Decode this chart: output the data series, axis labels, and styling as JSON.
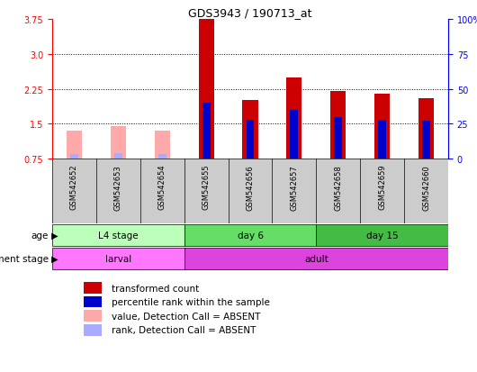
{
  "title": "GDS3943 / 190713_at",
  "samples": [
    "GSM542652",
    "GSM542653",
    "GSM542654",
    "GSM542655",
    "GSM542656",
    "GSM542657",
    "GSM542658",
    "GSM542659",
    "GSM542660"
  ],
  "transformed_count": [
    1.35,
    1.45,
    1.35,
    3.75,
    2.0,
    2.5,
    2.2,
    2.15,
    2.05
  ],
  "percentile_rank": [
    0.03,
    0.04,
    0.03,
    0.4,
    0.28,
    0.35,
    0.3,
    0.28,
    0.27
  ],
  "detection_absent": [
    true,
    true,
    true,
    false,
    false,
    false,
    false,
    false,
    false
  ],
  "ylim_left": [
    0.75,
    3.75
  ],
  "yticks_left": [
    0.75,
    1.5,
    2.25,
    3.0,
    3.75
  ],
  "yticks_right": [
    0,
    25,
    50,
    75,
    100
  ],
  "red_present": "#cc0000",
  "red_absent": "#ffaaaa",
  "blue_present": "#0000cc",
  "blue_absent": "#aaaaff",
  "age_groups": [
    {
      "label": "L4 stage",
      "start": 0,
      "end": 3,
      "color": "#bbffbb"
    },
    {
      "label": "day 6",
      "start": 3,
      "end": 6,
      "color": "#66dd66"
    },
    {
      "label": "day 15",
      "start": 6,
      "end": 9,
      "color": "#44bb44"
    }
  ],
  "dev_groups": [
    {
      "label": "larval",
      "start": 0,
      "end": 3,
      "color": "#ff77ff"
    },
    {
      "label": "adult",
      "start": 3,
      "end": 9,
      "color": "#dd44dd"
    }
  ],
  "legend_items": [
    {
      "label": "transformed count",
      "color": "#cc0000"
    },
    {
      "label": "percentile rank within the sample",
      "color": "#0000cc"
    },
    {
      "label": "value, Detection Call = ABSENT",
      "color": "#ffaaaa"
    },
    {
      "label": "rank, Detection Call = ABSENT",
      "color": "#aaaaff"
    }
  ],
  "sample_box_color": "#cccccc",
  "plot_bg": "#ffffff",
  "fig_bg": "#ffffff"
}
